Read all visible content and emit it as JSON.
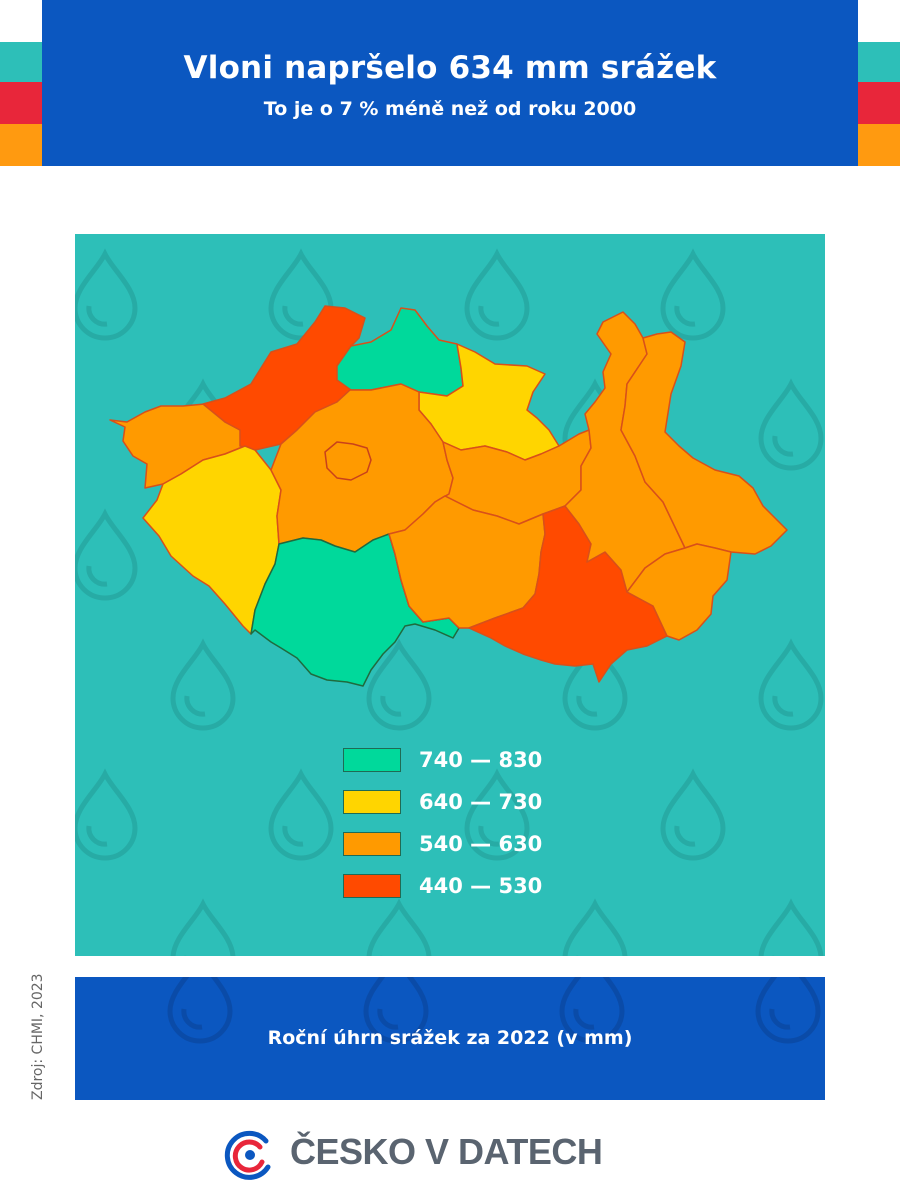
{
  "header": {
    "title": "Vloni napršelo 634 mm srážek",
    "subtitle": "To je o 7 % méně než od roku 2000"
  },
  "colors": {
    "header_bg": "#0b57c0",
    "panel_bg": "#2dbfb8",
    "stripe_teal": "#2dbfb8",
    "stripe_red": "#e8263a",
    "stripe_orange": "#ff9a10",
    "class_740_830": "#00d99b",
    "class_640_730": "#ffd500",
    "class_540_630": "#ff9a00",
    "class_440_530": "#ff4a00"
  },
  "legend": [
    {
      "label": "740 — 830",
      "color": "#00d99b"
    },
    {
      "label": "640 — 730",
      "color": "#ffd500"
    },
    {
      "label": "540 — 630",
      "color": "#ff9a00"
    },
    {
      "label": "440 — 530",
      "color": "#ff4a00"
    }
  ],
  "map": {
    "regions": [
      {
        "id": "karlovarsky",
        "class": "540 — 630"
      },
      {
        "id": "ustecky",
        "class": "440 — 530"
      },
      {
        "id": "liberecky",
        "class": "740 — 830"
      },
      {
        "id": "kralovehradecky",
        "class": "640 — 730"
      },
      {
        "id": "plzensky",
        "class": "640 — 730"
      },
      {
        "id": "stredocesky",
        "class": "540 — 630"
      },
      {
        "id": "praha",
        "class": "540 — 630"
      },
      {
        "id": "jihocesky",
        "class": "740 — 830"
      },
      {
        "id": "pardubicky",
        "class": "540 — 630"
      },
      {
        "id": "vysocina",
        "class": "540 — 630"
      },
      {
        "id": "jihomoravsky",
        "class": "440 — 530"
      },
      {
        "id": "olomoucky",
        "class": "540 — 630"
      },
      {
        "id": "moravskoslezsky",
        "class": "540 — 630"
      },
      {
        "id": "zlinsky",
        "class": "540 — 630"
      }
    ]
  },
  "footer": {
    "caption": "Roční úhrn srážek za 2022 (v mm)",
    "source": "Zdroj: CHMI, 2023",
    "brand": "ČESKO V DATECH",
    "logo_icon": "cesko-v-datech-logo-icon"
  }
}
